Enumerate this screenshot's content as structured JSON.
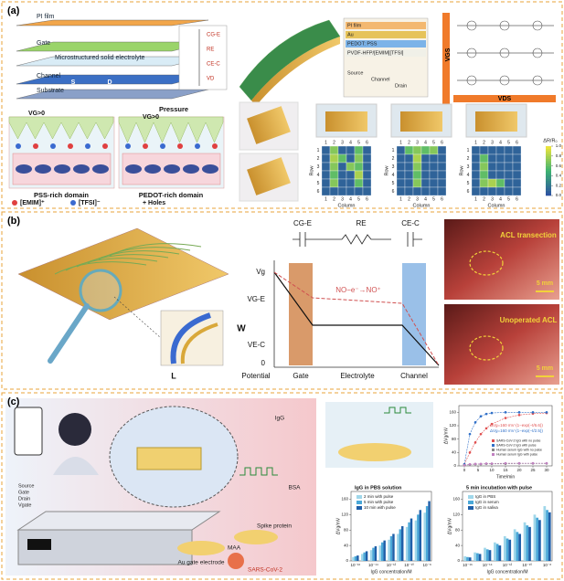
{
  "panel_a": {
    "label": "(a)",
    "layers": [
      "PI film",
      "Gate",
      "Microstructured solid electrolyte",
      "Channel",
      "Substrate"
    ],
    "sd": [
      "S",
      "D"
    ],
    "circuit": [
      "CG-E",
      "RE",
      "CE-C",
      "VD"
    ],
    "stack_layers": [
      "PI film",
      "Au",
      "PEDOT: PSS",
      "PVDF-HFP/[EMIM][TFSI]",
      "Source",
      "Channel",
      "Drain"
    ],
    "matrix_axes": [
      "VGS",
      "VDS"
    ],
    "mech": [
      "VG>0",
      "Pressure",
      "VG>0"
    ],
    "domains": [
      "PSS-rich domain",
      "PEDOT-rich domain"
    ],
    "legend": [
      "[EMIM]⁺",
      "[TFSI]⁻",
      "+ Holes"
    ],
    "heatmaps": {
      "row_label": "Row",
      "col_label": "Column",
      "cbar_label": "ΔR/R₀",
      "ticks": [
        1,
        2,
        3,
        4,
        5,
        6
      ],
      "cbar_ticks": [
        {
          "value": 0,
          "label": "0.0"
        },
        0.2,
        0.4,
        0.6,
        0.8,
        {
          "value": 1,
          "label": "1.0"
        }
      ],
      "maps": [
        [
          [
            0.1,
            0.7,
            0.1,
            0.1,
            0.6,
            0.1
          ],
          [
            0.1,
            0.8,
            0.6,
            0.1,
            0.7,
            0.1
          ],
          [
            0.1,
            0.7,
            0.1,
            0.7,
            0.6,
            0.1
          ],
          [
            0.1,
            0.6,
            0.1,
            0.1,
            0.8,
            0.1
          ],
          [
            0.1,
            0.7,
            0.1,
            0.1,
            0.6,
            0.1
          ],
          [
            0.1,
            0.1,
            0.1,
            0.1,
            0.1,
            0.1
          ]
        ],
        [
          [
            0.1,
            0.6,
            0.7,
            0.6,
            0.7,
            0.1
          ],
          [
            0.1,
            0.1,
            0.8,
            0.1,
            0.1,
            0.1
          ],
          [
            0.1,
            0.1,
            0.7,
            0.1,
            0.1,
            0.1
          ],
          [
            0.1,
            0.1,
            0.6,
            0.1,
            0.1,
            0.1
          ],
          [
            0.1,
            0.1,
            0.7,
            0.1,
            0.1,
            0.1
          ],
          [
            0.1,
            0.1,
            0.1,
            0.1,
            0.1,
            0.1
          ]
        ],
        [
          [
            0.1,
            0.1,
            0.1,
            0.1,
            0.1,
            0.1
          ],
          [
            0.1,
            0.6,
            0.1,
            0.1,
            0.1,
            0.1
          ],
          [
            0.1,
            0.7,
            0.1,
            0.1,
            0.1,
            0.1
          ],
          [
            0.1,
            0.6,
            0.1,
            0.1,
            0.1,
            0.1
          ],
          [
            0.1,
            0.7,
            0.8,
            0.6,
            0.1,
            0.1
          ],
          [
            0.1,
            0.1,
            0.1,
            0.1,
            0.1,
            0.1
          ]
        ]
      ]
    }
  },
  "panel_b": {
    "label": "(b)",
    "circuit": [
      "CG-E",
      "RE",
      "CE-C"
    ],
    "levels": [
      "Vg",
      "VG-E",
      "VE-C",
      "0"
    ],
    "reaction": "NO−e⁻→NO⁺",
    "xlabels": [
      "Potential",
      "Gate",
      "Electrolyte",
      "Channel"
    ],
    "dims": [
      "W",
      "L"
    ],
    "photos": [
      {
        "caption": "ACL transection",
        "scale": "5 mm"
      },
      {
        "caption": "Unoperated ACL",
        "scale": "5 mm"
      }
    ]
  },
  "panel_c": {
    "label": "(c)",
    "parts": [
      "IgG",
      "BSA",
      "Spike protein",
      "Au gate electrode",
      "MAA",
      "SARS-CoV-2"
    ],
    "pins": [
      "Source",
      "Gate",
      "Drain",
      "Vgate"
    ],
    "time_chart": {
      "type": "line",
      "xlabel": "Time/min",
      "ylabel": "ΔVg/mV",
      "xlim": [
        -2,
        32
      ],
      "ylim": [
        0,
        180
      ],
      "xticks": [
        0,
        5,
        10,
        15,
        20,
        25,
        30
      ],
      "yticks": [
        0,
        40,
        80,
        120,
        160
      ],
      "annotations": [
        "ΔVg=160 mV·(1−exp(−t/6.6))",
        "ΔVg=160 mV·(1−exp(−t/2.5))"
      ],
      "x": [
        0,
        2,
        4,
        6,
        8,
        10,
        15,
        20,
        25,
        30
      ],
      "series": [
        {
          "name": "SARS-CoV-2 IgG with no pulse",
          "color": "#e05050",
          "values": [
            5,
            40,
            70,
            95,
            112,
            125,
            143,
            152,
            156,
            158
          ]
        },
        {
          "name": "SARS-CoV-2 IgG with pulse",
          "color": "#3070c8",
          "values": [
            5,
            95,
            130,
            148,
            155,
            158,
            160,
            160,
            160,
            160
          ]
        },
        {
          "name": "Human serum IgG with no pulse",
          "color": "#888888",
          "values": [
            2,
            4,
            5,
            5,
            6,
            6,
            6,
            7,
            7,
            7
          ]
        },
        {
          "name": "Human serum IgG with pulse",
          "color": "#c080c0",
          "values": [
            2,
            5,
            6,
            6,
            7,
            7,
            8,
            8,
            8,
            8
          ]
        }
      ]
    },
    "bar_charts": [
      {
        "type": "bar",
        "title": "IgG in PBS solution",
        "xlabel": "IgG concentration/M",
        "ylabel": "ΔVg/mV",
        "ylim": [
          0,
          180
        ],
        "yticks": [
          0,
          40,
          80,
          120,
          160
        ],
        "categories": [
          "10⁻¹⁶",
          null,
          "10⁻¹⁴",
          null,
          "10⁻¹²",
          null,
          "10⁻¹⁰",
          null,
          "10⁻⁸"
        ],
        "series": [
          {
            "name": "2 min with pulse",
            "color": "#9fd7ea",
            "values": [
              10,
              18,
              28,
              40,
              55,
              70,
              88,
              105,
              125
            ]
          },
          {
            "name": "5 min with pulse",
            "color": "#4aa8d8",
            "values": [
              12,
              22,
              34,
              48,
              64,
              82,
              100,
              120,
              142
            ]
          },
          {
            "name": "10 min with pulse",
            "color": "#1f5fa8",
            "values": [
              14,
              25,
              38,
              53,
              70,
              90,
              110,
              132,
              155
            ]
          }
        ]
      },
      {
        "type": "bar",
        "title": "5 min incubation with pulse",
        "xlabel": "IgG concentration/M",
        "ylabel": "ΔVg/mV",
        "ylim": [
          0,
          180
        ],
        "yticks": [
          0,
          40,
          80,
          120,
          160
        ],
        "categories": [
          "10⁻¹⁶",
          null,
          "10⁻¹⁴",
          null,
          "10⁻¹²",
          null,
          "10⁻¹⁰",
          null,
          "10⁻⁸"
        ],
        "series": [
          {
            "name": "IgG in PBS",
            "color": "#9fd7ea",
            "values": [
              12,
              22,
              34,
              48,
              64,
              82,
              100,
              120,
              142
            ]
          },
          {
            "name": "IgG in serum",
            "color": "#4aa8d8",
            "values": [
              10,
              20,
              30,
              44,
              58,
              75,
              92,
              112,
              132
            ]
          },
          {
            "name": "IgG in saliva",
            "color": "#1f5fa8",
            "values": [
              9,
              18,
              28,
              40,
              55,
              70,
              88,
              106,
              126
            ]
          }
        ]
      }
    ]
  }
}
